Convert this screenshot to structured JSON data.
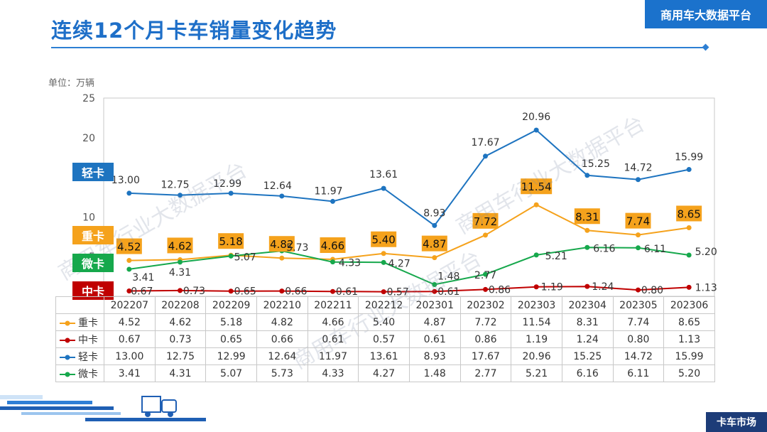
{
  "header": {
    "title": "连续12个月卡车销量变化趋势",
    "brand": "商用车大数据平台"
  },
  "footer": {
    "tag": "卡车市场"
  },
  "watermarks": [
    "商用车行业大数据平台",
    "商用车行业大数据平台",
    "商用车行业大数据平台"
  ],
  "colors": {
    "重卡": "#f5a21c",
    "中卡": "#c00000",
    "轻卡": "#1e74c0",
    "微卡": "#16a84c"
  },
  "chart_data": {
    "type": "line",
    "unit_label": "单位：万辆",
    "categories": [
      "202207",
      "202208",
      "202209",
      "202210",
      "202211",
      "202212",
      "202301",
      "202302",
      "202303",
      "202304",
      "202305",
      "202306"
    ],
    "ylim": [
      0,
      25
    ],
    "yticks": [
      5,
      10,
      15,
      20,
      25
    ],
    "series": [
      {
        "name": "重卡",
        "values": [
          4.52,
          4.62,
          5.18,
          4.82,
          4.66,
          5.4,
          4.87,
          7.72,
          11.54,
          8.31,
          7.74,
          8.65
        ],
        "labels": [
          "4.52",
          "4.62",
          "5.18",
          "4.82",
          "4.66",
          "5.40",
          "4.87",
          "7.72",
          "11.54",
          "8.31",
          "7.74",
          "8.65"
        ]
      },
      {
        "name": "中卡",
        "values": [
          0.67,
          0.73,
          0.65,
          0.66,
          0.61,
          0.57,
          0.61,
          0.86,
          1.19,
          1.24,
          0.8,
          1.13
        ],
        "labels": [
          "0.67",
          "0.73",
          "0.65",
          "0.66",
          "0.61",
          "0.57",
          "0.61",
          "0.86",
          "1.19",
          "1.24",
          "0.80",
          "1.13"
        ]
      },
      {
        "name": "轻卡",
        "values": [
          13.0,
          12.75,
          12.99,
          12.64,
          11.97,
          13.61,
          8.93,
          17.67,
          20.96,
          15.25,
          14.72,
          15.99
        ],
        "labels": [
          "13.00",
          "12.75",
          "12.99",
          "12.64",
          "11.97",
          "13.61",
          "8.93",
          "17.67",
          "20.96",
          "15.25",
          "14.72",
          "15.99"
        ]
      },
      {
        "name": "微卡",
        "values": [
          3.41,
          4.31,
          5.07,
          5.73,
          4.33,
          4.27,
          1.48,
          2.77,
          5.21,
          6.16,
          6.11,
          5.2
        ],
        "labels": [
          "3.41",
          "4.31",
          "5.07",
          "5.73",
          "4.33",
          "4.27",
          "1.48",
          "2.77",
          "5.21",
          "6.16",
          "6.11",
          "5.20"
        ]
      }
    ]
  },
  "badges": [
    {
      "text": "轻卡",
      "series": "轻卡"
    },
    {
      "text": "重卡",
      "series": "重卡"
    },
    {
      "text": "微卡",
      "series": "微卡"
    },
    {
      "text": "中卡",
      "series": "中卡"
    }
  ]
}
